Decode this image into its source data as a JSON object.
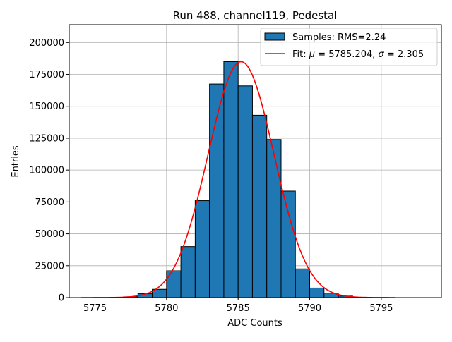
{
  "chart_data": {
    "type": "bar",
    "title": "Run 488, channel119, Pedestal",
    "xlabel": "ADC Counts",
    "ylabel": "Entries",
    "xlim": [
      5773.2,
      5799.2
    ],
    "ylim": [
      0,
      214000
    ],
    "grid": true,
    "xticks": [
      5775,
      5780,
      5785,
      5790,
      5795
    ],
    "yticks": [
      0,
      25000,
      50000,
      75000,
      100000,
      125000,
      150000,
      175000,
      200000
    ],
    "histogram": {
      "name": "Samples: RMS=2.24",
      "bin_width": 1,
      "color": "#1f77b4",
      "edge_color": "#000000",
      "bins": [
        {
          "left": 5777,
          "value": 600
        },
        {
          "left": 5778,
          "value": 3000
        },
        {
          "left": 5779,
          "value": 6500
        },
        {
          "left": 5780,
          "value": 21000
        },
        {
          "left": 5781,
          "value": 40000
        },
        {
          "left": 5782,
          "value": 76000
        },
        {
          "left": 5783,
          "value": 167500
        },
        {
          "left": 5784,
          "value": 185000
        },
        {
          "left": 5785,
          "value": 166000
        },
        {
          "left": 5786,
          "value": 143000
        },
        {
          "left": 5787,
          "value": 124000
        },
        {
          "left": 5788,
          "value": 83500
        },
        {
          "left": 5789,
          "value": 22500
        },
        {
          "left": 5790,
          "value": 7500
        },
        {
          "left": 5791,
          "value": 3500
        },
        {
          "left": 5792,
          "value": 1200
        },
        {
          "left": 5793,
          "value": 300
        }
      ]
    },
    "fit": {
      "name": "Fit: μ = 5785.204, σ = 2.305",
      "label_prefix": "Fit: ",
      "mu_symbol": "μ",
      "mu_text": " = 5785.204, ",
      "sigma_symbol": "σ",
      "sigma_text": " = 2.305",
      "mu": 5785.204,
      "sigma": 2.305,
      "amplitude": 185000,
      "x_range": [
        5774,
        5796
      ],
      "color": "#ff0000"
    },
    "legend_position": "top-right"
  }
}
